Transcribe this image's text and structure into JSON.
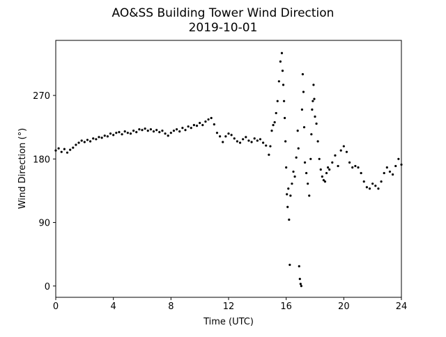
{
  "chart_data": {
    "type": "scatter",
    "title": "AO&SS Building Tower Wind Direction",
    "subtitle": "2019-10-01",
    "x_label": "Time (UTC)",
    "y_label": "Wind Direction (°)",
    "color": "#000000",
    "xlim": [
      0,
      24
    ],
    "xticks": [
      0,
      4,
      8,
      12,
      16,
      20,
      24
    ],
    "ylim": [
      -16,
      348
    ],
    "yticks": [
      0,
      90,
      180,
      270
    ],
    "grid": false,
    "x": [
      0.0,
      0.2,
      0.4,
      0.6,
      0.8,
      1.0,
      1.2,
      1.4,
      1.6,
      1.8,
      2.0,
      2.2,
      2.4,
      2.6,
      2.8,
      3.0,
      3.2,
      3.4,
      3.6,
      3.8,
      4.0,
      4.2,
      4.4,
      4.6,
      4.8,
      5.0,
      5.2,
      5.4,
      5.6,
      5.8,
      6.0,
      6.2,
      6.4,
      6.6,
      6.8,
      7.0,
      7.2,
      7.4,
      7.6,
      7.8,
      8.0,
      8.2,
      8.4,
      8.6,
      8.8,
      9.0,
      9.2,
      9.4,
      9.6,
      9.8,
      10.0,
      10.2,
      10.4,
      10.6,
      10.8,
      11.0,
      11.2,
      11.4,
      11.6,
      11.8,
      12.0,
      12.2,
      12.4,
      12.6,
      12.8,
      13.0,
      13.2,
      13.4,
      13.6,
      13.8,
      14.0,
      14.2,
      14.4,
      14.6,
      14.8,
      14.9,
      15.0,
      15.1,
      15.2,
      15.3,
      15.4,
      15.5,
      15.6,
      15.7,
      15.75,
      15.8,
      15.85,
      15.9,
      15.95,
      16.0,
      16.05,
      16.1,
      16.15,
      16.2,
      16.25,
      16.3,
      16.4,
      16.5,
      16.6,
      16.7,
      16.8,
      16.85,
      16.9,
      16.95,
      17.0,
      17.05,
      17.1,
      17.15,
      17.2,
      17.25,
      17.3,
      17.4,
      17.5,
      17.6,
      17.7,
      17.75,
      17.8,
      17.85,
      17.9,
      17.95,
      18.0,
      18.1,
      18.2,
      18.3,
      18.4,
      18.5,
      18.6,
      18.7,
      18.8,
      18.9,
      19.0,
      19.2,
      19.4,
      19.6,
      19.8,
      20.0,
      20.2,
      20.4,
      20.6,
      20.8,
      21.0,
      21.2,
      21.4,
      21.6,
      21.8,
      22.0,
      22.2,
      22.4,
      22.6,
      22.8,
      23.0,
      23.2,
      23.4,
      23.6,
      23.8,
      24.0
    ],
    "values": [
      192,
      195,
      190,
      194,
      189,
      193,
      196,
      200,
      203,
      206,
      204,
      207,
      205,
      209,
      208,
      211,
      210,
      213,
      212,
      216,
      214,
      217,
      218,
      215,
      219,
      217,
      216,
      220,
      218,
      222,
      221,
      223,
      220,
      222,
      219,
      221,
      218,
      220,
      216,
      213,
      217,
      220,
      222,
      219,
      224,
      221,
      226,
      224,
      228,
      227,
      231,
      228,
      233,
      236,
      238,
      229,
      217,
      212,
      204,
      212,
      216,
      214,
      209,
      205,
      203,
      208,
      211,
      206,
      204,
      209,
      206,
      208,
      203,
      199,
      186,
      198,
      220,
      228,
      232,
      245,
      262,
      290,
      318,
      330,
      305,
      285,
      262,
      238,
      205,
      168,
      130,
      112,
      138,
      94,
      30,
      128,
      145,
      162,
      155,
      182,
      220,
      195,
      28,
      10,
      3,
      0,
      250,
      300,
      275,
      225,
      175,
      160,
      145,
      128,
      180,
      215,
      250,
      262,
      285,
      265,
      240,
      230,
      205,
      180,
      165,
      155,
      150,
      148,
      160,
      168,
      165,
      175,
      185,
      170,
      192,
      198,
      190,
      175,
      168,
      170,
      168,
      160,
      148,
      140,
      138,
      145,
      142,
      138,
      148,
      160,
      168,
      162,
      158,
      170,
      180,
      172
    ]
  }
}
